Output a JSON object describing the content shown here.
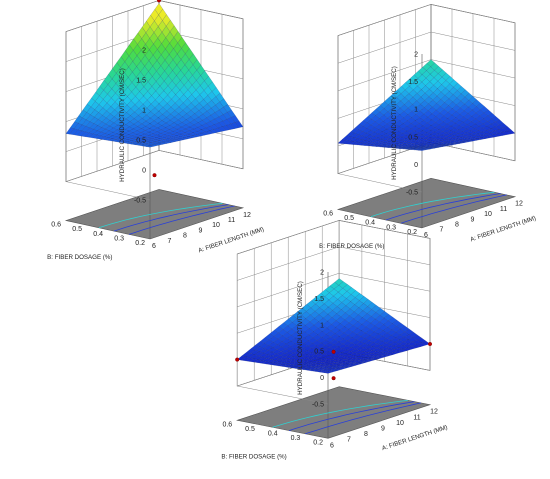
{
  "chart_data": [
    {
      "type": "surface3d",
      "x_label": "A: FIBER LENGTH (MM)",
      "y_label": "B: FIBER DOSAGE (%)",
      "z_label": "HYDRAULIC CONDUCTIVITY (CM/SEC)",
      "x_ticks": [
        "6",
        "7",
        "8",
        "9",
        "10",
        "11",
        "12"
      ],
      "y_ticks": [
        "0.2",
        "0.3",
        "0.4",
        "0.5",
        "0.6"
      ],
      "z_ticks": [
        "-0.5",
        "0",
        "0.5",
        "1",
        "1.5",
        "2"
      ],
      "x_range": [
        6,
        12
      ],
      "y_range": [
        0.2,
        0.6
      ],
      "z_range": [
        -0.5,
        2
      ],
      "surface_corners": {
        "x6_y0.2": 0.38,
        "x12_y0.2": 0.2,
        "x6_y0.6": 0.3,
        "x12_y0.6": 1.95
      },
      "design_points": [
        {
          "x": 12,
          "y": 0.6,
          "z": 2.0
        },
        {
          "x": 9,
          "y": 0.4,
          "z": -0.5
        }
      ],
      "colormap": "blue-cyan-green-yellow"
    },
    {
      "type": "surface3d",
      "x_label": "A: FIBER LENGTH (MM)",
      "y_label": "B: FIBER DOSAGE (%)",
      "z_label": "HYDRAULIC CONDUCTIVITY (CM/SEC)",
      "x_ticks": [
        "6",
        "7",
        "8",
        "9",
        "10",
        "11",
        "12"
      ],
      "y_ticks": [
        "0.2",
        "0.3",
        "0.4",
        "0.5",
        "0.6"
      ],
      "z_ticks": [
        "-0.5",
        "0",
        "0.5",
        "1",
        "1.5",
        "2"
      ],
      "x_range": [
        6,
        12
      ],
      "y_range": [
        0.2,
        0.6
      ],
      "z_range": [
        -0.5,
        2
      ],
      "surface_corners": {
        "x6_y0.2": 0.25,
        "x12_y0.2": 0.0,
        "x6_y0.6": 0.05,
        "x12_y0.6": 1.0
      },
      "design_points": [],
      "colormap": "blue-cyan-green-yellow"
    },
    {
      "type": "surface3d",
      "x_label": "A: FIBER LENGTH (MM)",
      "y_label": "B: FIBER DOSAGE (%)",
      "z_label": "HYDRAULIC CONDUCTIVITY (CM/SEC)",
      "x_ticks": [
        "6",
        "7",
        "8",
        "9",
        "10",
        "11",
        "12"
      ],
      "y_ticks": [
        "0.2",
        "0.3",
        "0.4",
        "0.5",
        "0.6"
      ],
      "z_ticks": [
        "-0.5",
        "0",
        "0.5",
        "1",
        "1.5",
        "2"
      ],
      "x_range": [
        6,
        12
      ],
      "y_range": [
        0.2,
        0.6
      ],
      "z_range": [
        -0.5,
        2
      ],
      "surface_corners": {
        "x6_y0.2": 0.08,
        "x12_y0.2": 0.0,
        "x6_y0.6": 0.0,
        "x12_y0.6": 0.9
      },
      "design_points": [
        {
          "x": 6,
          "y": 0.6,
          "z": 0.0
        },
        {
          "x": 12,
          "y": 0.2,
          "z": 0.0
        },
        {
          "x": 9,
          "y": 0.4,
          "z": 0.0
        },
        {
          "x": 9,
          "y": 0.4,
          "z": -0.5
        }
      ],
      "colormap": "blue-cyan-green-yellow"
    }
  ]
}
